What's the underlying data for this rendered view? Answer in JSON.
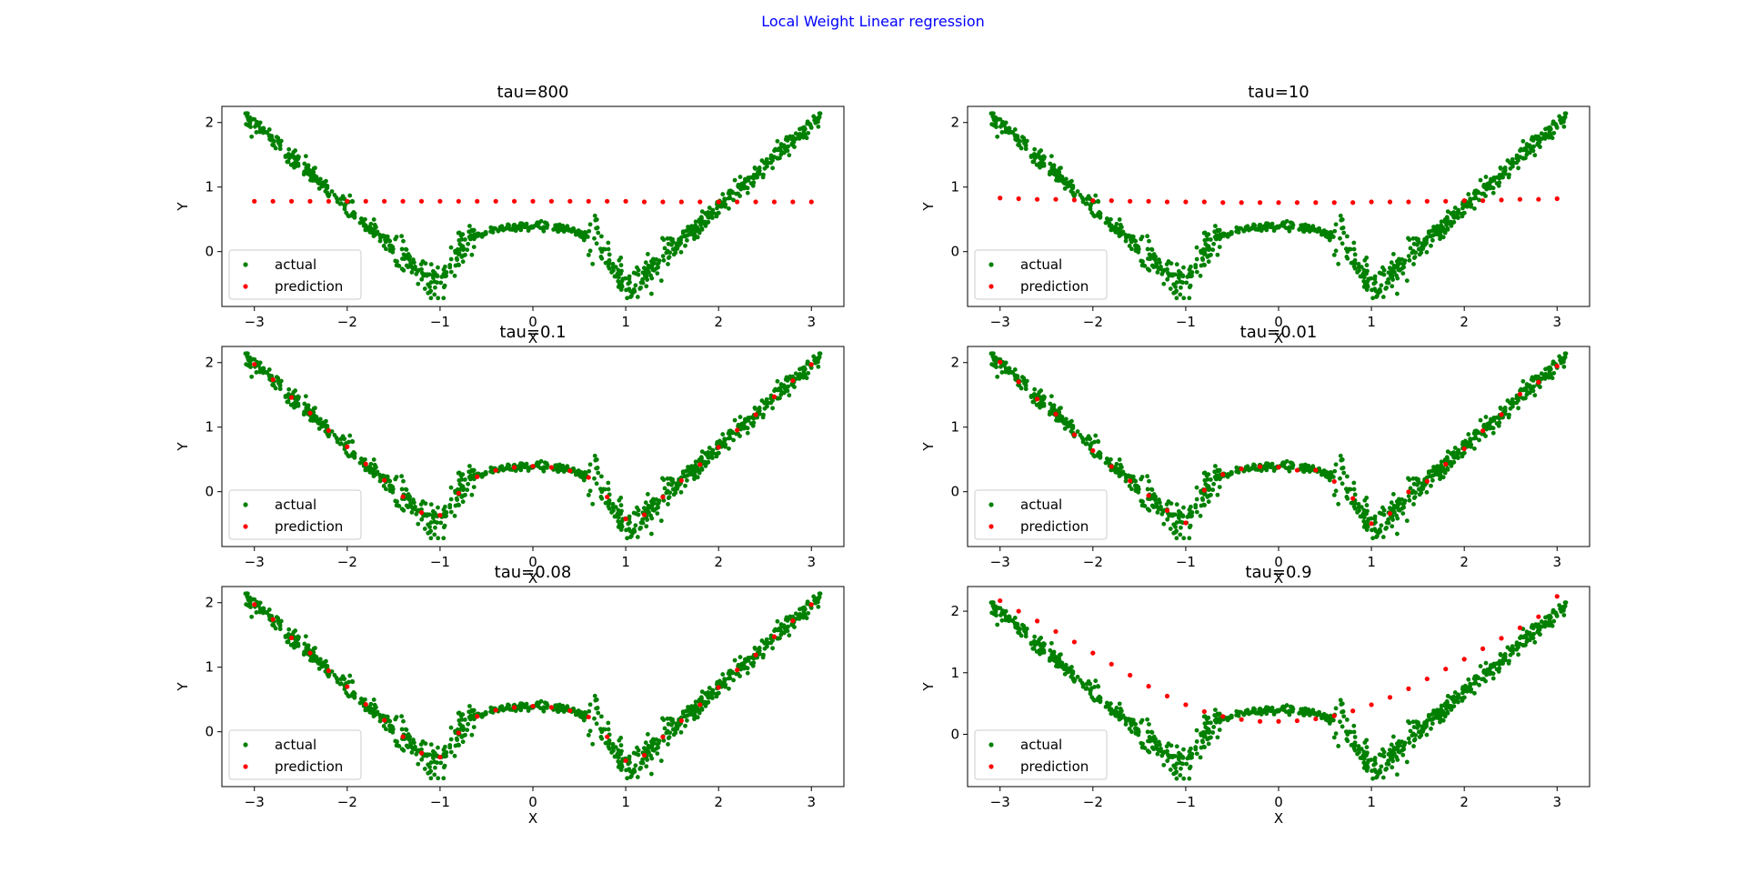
{
  "figure": {
    "suptitle": "Local Weight Linear regression",
    "suptitle_color": "#0000ff"
  },
  "chart_data": [
    {
      "type": "scatter",
      "title": "tau=800",
      "xlabel": "X",
      "ylabel": "Y",
      "xlim": [
        -3.35,
        3.35
      ],
      "ylim": [
        -0.85,
        2.25
      ],
      "xticks": [
        "−3",
        "−2",
        "−1",
        "0",
        "1",
        "2",
        "3"
      ],
      "yticks": [
        "0",
        "1",
        "2"
      ],
      "legend": {
        "position": "lower-left",
        "entries": [
          "actual",
          "prediction"
        ]
      },
      "series": [
        {
          "name": "actual",
          "color": "#008000",
          "description": "noisy samples of y = |x^2 - 1| * 0.4-ish V-shaped curve, x from -3.1 to 3.1"
        },
        {
          "name": "prediction",
          "color": "#ff0000",
          "x": [
            -3.0,
            -2.8,
            -2.6,
            -2.4,
            -2.2,
            -2.0,
            -1.8,
            -1.6,
            -1.4,
            -1.2,
            -1.0,
            -0.8,
            -0.6,
            -0.4,
            -0.2,
            0.0,
            0.2,
            0.4,
            0.6,
            0.8,
            1.0,
            1.2,
            1.4,
            1.6,
            1.8,
            2.0,
            2.2,
            2.4,
            2.6,
            2.8,
            3.0
          ],
          "y": [
            0.78,
            0.78,
            0.78,
            0.78,
            0.78,
            0.78,
            0.78,
            0.78,
            0.78,
            0.78,
            0.78,
            0.78,
            0.78,
            0.78,
            0.78,
            0.78,
            0.78,
            0.78,
            0.78,
            0.78,
            0.78,
            0.77,
            0.77,
            0.77,
            0.77,
            0.77,
            0.77,
            0.77,
            0.77,
            0.77,
            0.77
          ]
        }
      ]
    },
    {
      "type": "scatter",
      "title": "tau=10",
      "xlabel": "X",
      "ylabel": "Y",
      "xlim": [
        -3.35,
        3.35
      ],
      "ylim": [
        -0.85,
        2.25
      ],
      "xticks": [
        "−3",
        "−2",
        "−1",
        "0",
        "1",
        "2",
        "3"
      ],
      "yticks": [
        "0",
        "1",
        "2"
      ],
      "legend": {
        "position": "lower-left",
        "entries": [
          "actual",
          "prediction"
        ]
      },
      "series": [
        {
          "name": "actual",
          "color": "#008000"
        },
        {
          "name": "prediction",
          "color": "#ff0000",
          "x": [
            -3.0,
            -2.8,
            -2.6,
            -2.4,
            -2.2,
            -2.0,
            -1.8,
            -1.6,
            -1.4,
            -1.2,
            -1.0,
            -0.8,
            -0.6,
            -0.4,
            -0.2,
            0.0,
            0.2,
            0.4,
            0.6,
            0.8,
            1.0,
            1.2,
            1.4,
            1.6,
            1.8,
            2.0,
            2.2,
            2.4,
            2.6,
            2.8,
            3.0
          ],
          "y": [
            0.83,
            0.82,
            0.81,
            0.81,
            0.8,
            0.79,
            0.79,
            0.78,
            0.78,
            0.77,
            0.77,
            0.77,
            0.76,
            0.76,
            0.76,
            0.76,
            0.76,
            0.76,
            0.76,
            0.76,
            0.77,
            0.77,
            0.77,
            0.78,
            0.78,
            0.79,
            0.79,
            0.8,
            0.81,
            0.81,
            0.82
          ]
        }
      ]
    },
    {
      "type": "scatter",
      "title": "tau=0.1",
      "xlabel": "X",
      "ylabel": "Y",
      "xlim": [
        -3.35,
        3.35
      ],
      "ylim": [
        -0.85,
        2.25
      ],
      "xticks": [
        "−3",
        "−2",
        "−1",
        "0",
        "1",
        "2",
        "3"
      ],
      "yticks": [
        "0",
        "1",
        "2"
      ],
      "legend": {
        "position": "lower-left",
        "entries": [
          "actual",
          "prediction"
        ]
      },
      "series": [
        {
          "name": "actual",
          "color": "#008000"
        },
        {
          "name": "prediction",
          "color": "#ff0000",
          "model": "fit",
          "bandwidth": 0.1
        }
      ]
    },
    {
      "type": "scatter",
      "title": "tau=0.01",
      "xlabel": "X",
      "ylabel": "Y",
      "xlim": [
        -3.35,
        3.35
      ],
      "ylim": [
        -0.85,
        2.25
      ],
      "xticks": [
        "−3",
        "−2",
        "−1",
        "0",
        "1",
        "2",
        "3"
      ],
      "yticks": [
        "0",
        "1",
        "2"
      ],
      "legend": {
        "position": "lower-left",
        "entries": [
          "actual",
          "prediction"
        ]
      },
      "series": [
        {
          "name": "actual",
          "color": "#008000"
        },
        {
          "name": "prediction",
          "color": "#ff0000",
          "model": "fit",
          "bandwidth": 0.01
        }
      ]
    },
    {
      "type": "scatter",
      "title": "tau=0.08",
      "xlabel": "X",
      "ylabel": "Y",
      "xlim": [
        -3.35,
        3.35
      ],
      "ylim": [
        -0.85,
        2.25
      ],
      "xticks": [
        "−3",
        "−2",
        "−1",
        "0",
        "1",
        "2",
        "3"
      ],
      "yticks": [
        "0",
        "1",
        "2"
      ],
      "legend": {
        "position": "lower-left",
        "entries": [
          "actual",
          "prediction"
        ]
      },
      "series": [
        {
          "name": "actual",
          "color": "#008000"
        },
        {
          "name": "prediction",
          "color": "#ff0000",
          "model": "fit",
          "bandwidth": 0.08
        }
      ]
    },
    {
      "type": "scatter",
      "title": "tau=0.9",
      "xlabel": "X",
      "ylabel": "Y",
      "xlim": [
        -3.35,
        3.35
      ],
      "ylim": [
        -0.85,
        2.4
      ],
      "xticks": [
        "−3",
        "−2",
        "−1",
        "0",
        "1",
        "2",
        "3"
      ],
      "yticks": [
        "0",
        "1",
        "2"
      ],
      "legend": {
        "position": "lower-left",
        "entries": [
          "actual",
          "prediction"
        ]
      },
      "series": [
        {
          "name": "actual",
          "color": "#008000"
        },
        {
          "name": "prediction",
          "color": "#ff0000",
          "x": [
            -3.0,
            -2.8,
            -2.6,
            -2.4,
            -2.2,
            -2.0,
            -1.8,
            -1.6,
            -1.4,
            -1.2,
            -1.0,
            -0.8,
            -0.6,
            -0.4,
            -0.2,
            0.0,
            0.2,
            0.4,
            0.6,
            0.8,
            1.0,
            1.2,
            1.4,
            1.6,
            1.8,
            2.0,
            2.2,
            2.4,
            2.6,
            2.8,
            3.0
          ],
          "y": [
            2.17,
            2.0,
            1.84,
            1.67,
            1.5,
            1.32,
            1.14,
            0.96,
            0.78,
            0.62,
            0.48,
            0.37,
            0.29,
            0.24,
            0.21,
            0.21,
            0.22,
            0.25,
            0.3,
            0.38,
            0.48,
            0.6,
            0.74,
            0.9,
            1.06,
            1.22,
            1.39,
            1.56,
            1.73,
            1.91,
            2.24
          ]
        }
      ]
    }
  ]
}
